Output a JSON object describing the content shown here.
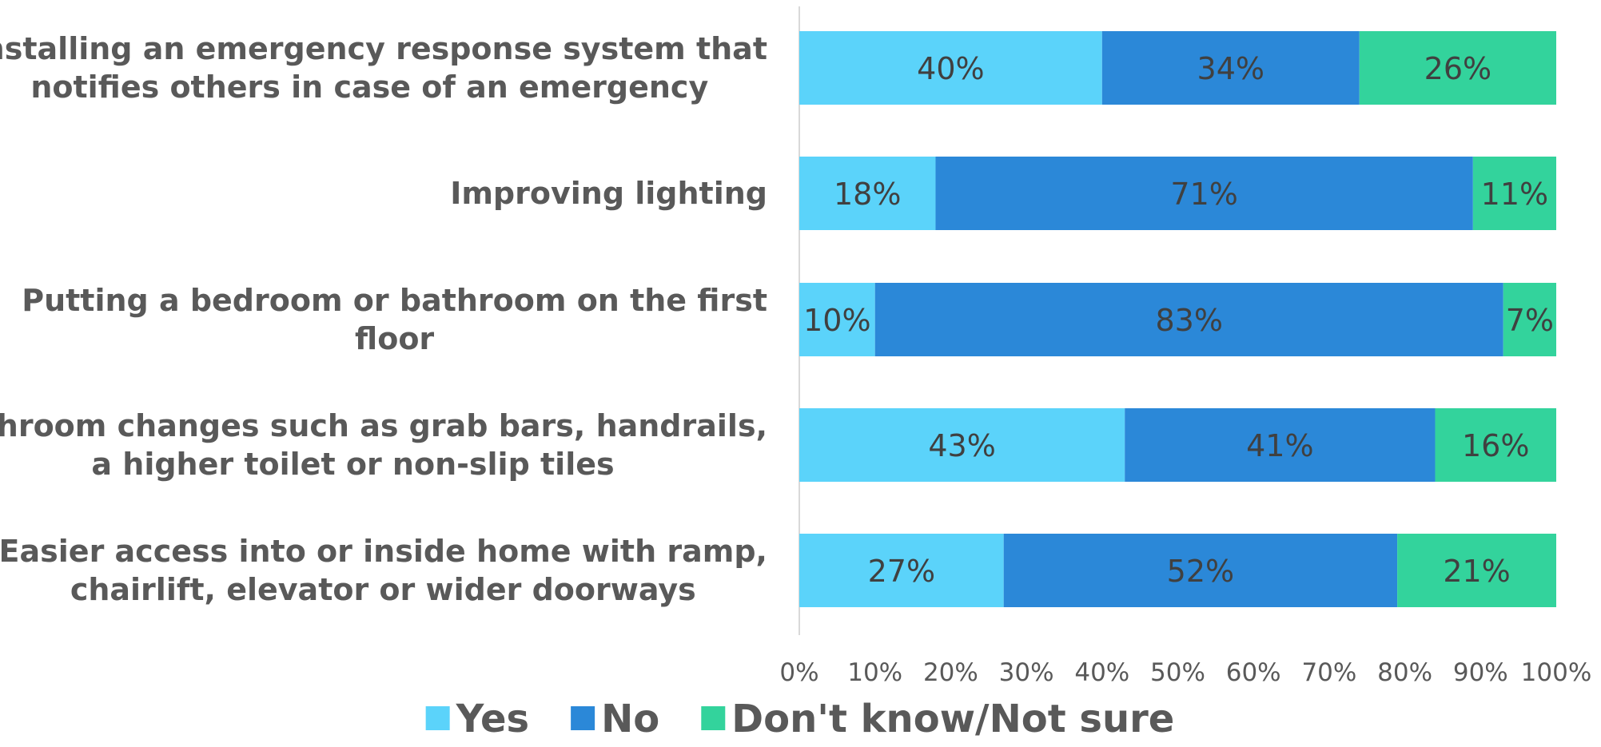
{
  "chart_data": {
    "type": "bar",
    "orientation": "horizontal",
    "stacked": "percent",
    "categories": [
      [
        "Installing an emergency response system that",
        "notifies others in case of an emergency"
      ],
      [
        "Improving lighting"
      ],
      [
        "Putting a bedroom or bathroom on the first",
        "floor"
      ],
      [
        "Bathroom changes such as grab bars, handrails,",
        "a higher toilet or non-slip tiles"
      ],
      [
        "Easier access into or inside home with ramp,",
        "chairlift, elevator or wider doorways"
      ]
    ],
    "series": [
      {
        "name": "Yes",
        "color": "#5BD3FA",
        "values": [
          40,
          18,
          10,
          43,
          27
        ],
        "labels": [
          "40%",
          "18%",
          "10%",
          "43%",
          "27%"
        ]
      },
      {
        "name": "No",
        "color": "#2B88D8",
        "values": [
          34,
          71,
          83,
          41,
          52
        ],
        "labels": [
          "34%",
          "71%",
          "83%",
          "41%",
          "52%"
        ]
      },
      {
        "name": "Don't know/Not sure",
        "color": "#33D39C",
        "values": [
          26,
          11,
          7,
          16,
          21
        ],
        "labels": [
          "26%",
          "11%",
          "7%",
          "16%",
          "21%"
        ]
      }
    ],
    "xlim": [
      0,
      100
    ],
    "x_ticks": [
      "0%",
      "10%",
      "20%",
      "30%",
      "40%",
      "50%",
      "60%",
      "70%",
      "80%",
      "90%",
      "100%"
    ],
    "grid": false,
    "legend": "bottom"
  }
}
